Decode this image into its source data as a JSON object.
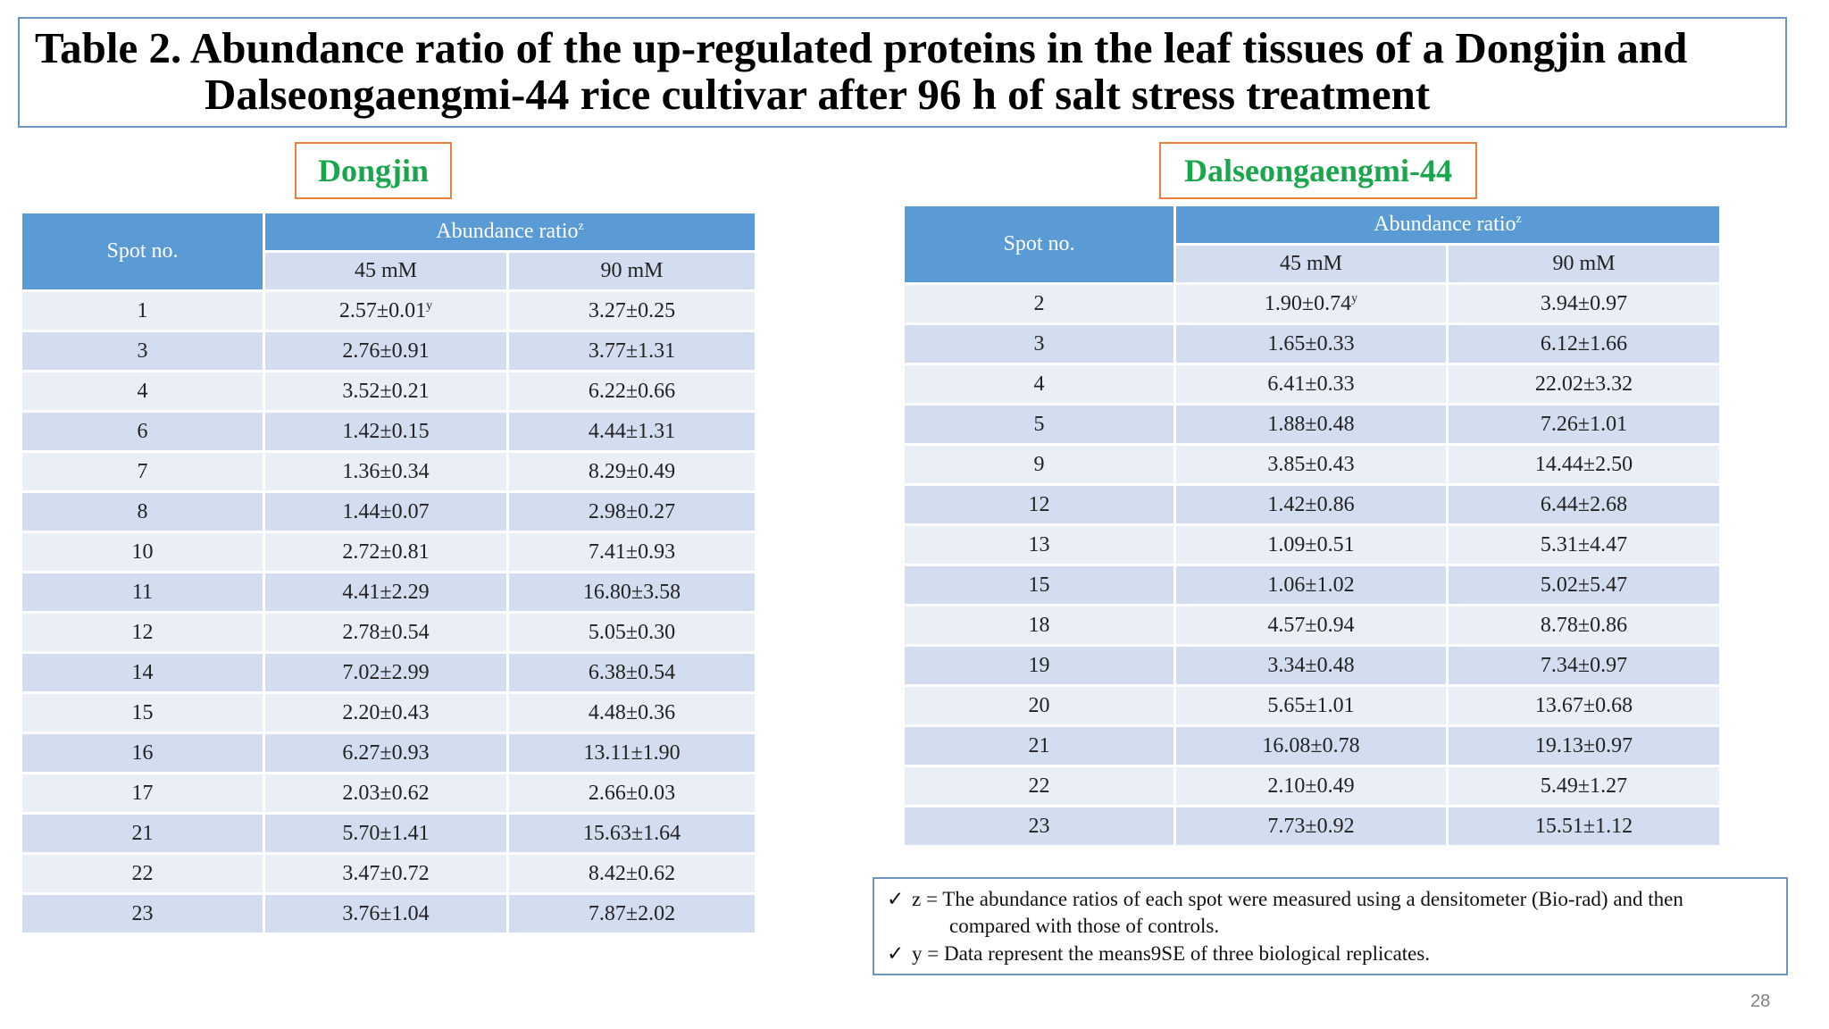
{
  "title": {
    "line1": "Table 2. Abundance ratio of the up-regulated proteins in the leaf tissues of a Dongjin and",
    "line2": "Dalseongaengmi-44 rice cultivar after 96 h of salt stress treatment"
  },
  "left_table": {
    "cultivar": "Dongjin",
    "header_spot": "Spot no.",
    "header_group": "Abundance ratio",
    "header_group_sup": "z",
    "header_45": "45 mM",
    "header_90": "90 mM",
    "rows": [
      {
        "spot": "1",
        "c45": "2.57±0.01",
        "c45_sup": "y",
        "c90": "3.27±0.25"
      },
      {
        "spot": "3",
        "c45": "2.76±0.91",
        "c90": "3.77±1.31"
      },
      {
        "spot": "4",
        "c45": "3.52±0.21",
        "c90": "6.22±0.66"
      },
      {
        "spot": "6",
        "c45": "1.42±0.15",
        "c90": "4.44±1.31"
      },
      {
        "spot": "7",
        "c45": "1.36±0.34",
        "c90": "8.29±0.49"
      },
      {
        "spot": "8",
        "c45": "1.44±0.07",
        "c90": "2.98±0.27"
      },
      {
        "spot": "10",
        "c45": "2.72±0.81",
        "c90": "7.41±0.93"
      },
      {
        "spot": "11",
        "c45": "4.41±2.29",
        "c90": "16.80±3.58"
      },
      {
        "spot": "12",
        "c45": "2.78±0.54",
        "c90": "5.05±0.30"
      },
      {
        "spot": "14",
        "c45": "7.02±2.99",
        "c90": "6.38±0.54"
      },
      {
        "spot": "15",
        "c45": "2.20±0.43",
        "c90": "4.48±0.36"
      },
      {
        "spot": "16",
        "c45": "6.27±0.93",
        "c90": "13.11±1.90"
      },
      {
        "spot": "17",
        "c45": "2.03±0.62",
        "c90": "2.66±0.03"
      },
      {
        "spot": "21",
        "c45": "5.70±1.41",
        "c90": "15.63±1.64"
      },
      {
        "spot": "22",
        "c45": "3.47±0.72",
        "c90": "8.42±0.62"
      },
      {
        "spot": "23",
        "c45": "3.76±1.04",
        "c90": "7.87±2.02"
      }
    ]
  },
  "right_table": {
    "cultivar": "Dalseongaengmi-44",
    "header_spot": "Spot no.",
    "header_group": "Abundance ratio",
    "header_group_sup": "z",
    "header_45": "45 mM",
    "header_90": "90 mM",
    "rows": [
      {
        "spot": "2",
        "c45": "1.90±0.74",
        "c45_sup": "y",
        "c90": "3.94±0.97"
      },
      {
        "spot": "3",
        "c45": "1.65±0.33",
        "c90": "6.12±1.66"
      },
      {
        "spot": "4",
        "c45": "6.41±0.33",
        "c90": "22.02±3.32"
      },
      {
        "spot": "5",
        "c45": "1.88±0.48",
        "c90": "7.26±1.01"
      },
      {
        "spot": "9",
        "c45": "3.85±0.43",
        "c90": "14.44±2.50"
      },
      {
        "spot": "12",
        "c45": "1.42±0.86",
        "c90": "6.44±2.68"
      },
      {
        "spot": "13",
        "c45": "1.09±0.51",
        "c90": "5.31±4.47"
      },
      {
        "spot": "15",
        "c45": "1.06±1.02",
        "c90": "5.02±5.47"
      },
      {
        "spot": "18",
        "c45": "4.57±0.94",
        "c90": "8.78±0.86"
      },
      {
        "spot": "19",
        "c45": "3.34±0.48",
        "c90": "7.34±0.97"
      },
      {
        "spot": "20",
        "c45": "5.65±1.01",
        "c90": "13.67±0.68"
      },
      {
        "spot": "21",
        "c45": "16.08±0.78",
        "c90": "19.13±0.97"
      },
      {
        "spot": "22",
        "c45": "2.10±0.49",
        "c90": "5.49±1.27"
      },
      {
        "spot": "23",
        "c45": "7.73±0.92",
        "c90": "15.51±1.12"
      }
    ]
  },
  "notes": {
    "check_symbol": "✓",
    "note1_line1": "z = The abundance ratios of each spot were measured using a densitometer (Bio-rad) and then",
    "note1_line2": "compared with those of controls.",
    "note2": "y = Data represent the means9SE of three biological replicates."
  },
  "page_number": "28",
  "colors": {
    "header_blue": "#5b9bd5",
    "row_light": "#e9eef7",
    "row_dark": "#d2deef",
    "cultivar_green": "#1aa64c",
    "label_border_orange": "#e8803a",
    "box_border_blue": "#6b96bf"
  }
}
